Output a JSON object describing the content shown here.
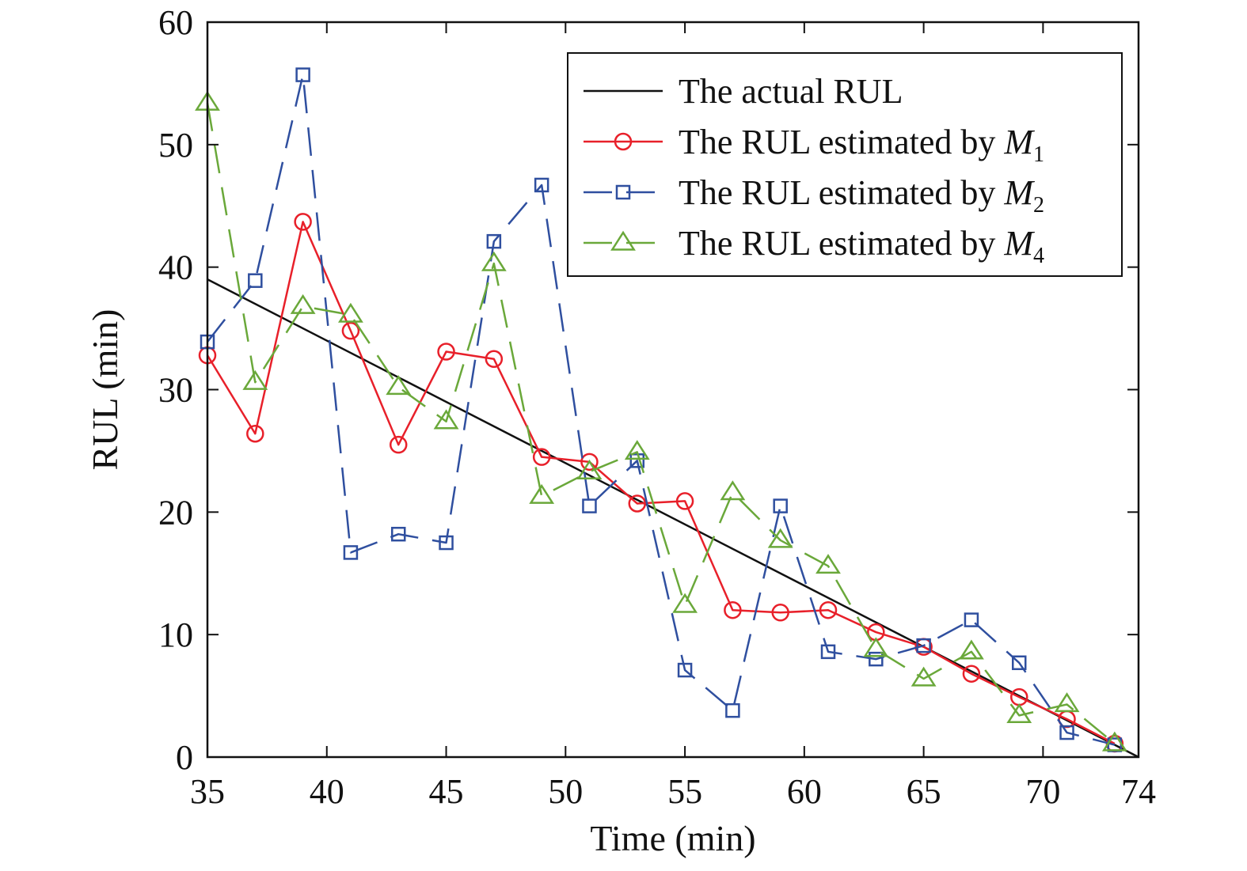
{
  "chart_data": {
    "type": "line",
    "xlabel": "Time (min)",
    "ylabel": "RUL (min)",
    "xlim": [
      35,
      74
    ],
    "ylim": [
      0,
      60
    ],
    "xticks": [
      35,
      40,
      45,
      50,
      55,
      60,
      65,
      70,
      74
    ],
    "yticks": [
      0,
      10,
      20,
      30,
      40,
      50,
      60
    ],
    "grid": false,
    "legend_position": "top-right",
    "series": [
      {
        "name": "The actual RUL",
        "legend_prefix": "The actual RUL",
        "legend_italic": "",
        "legend_subscript": "",
        "color": "#111111",
        "style": "solid",
        "marker": "none",
        "x": [
          35,
          74
        ],
        "y": [
          39,
          0
        ]
      },
      {
        "name": "The RUL estimated by M1",
        "legend_prefix": "The RUL estimated by ",
        "legend_italic": "M",
        "legend_subscript": "1",
        "color": "#e8202a",
        "style": "solid",
        "marker": "circle",
        "x": [
          35,
          37,
          39,
          41,
          43,
          45,
          47,
          49,
          51,
          53,
          55,
          57,
          59,
          61,
          63,
          65,
          67,
          69,
          71,
          73
        ],
        "y": [
          32.8,
          26.4,
          43.7,
          34.8,
          25.5,
          33.1,
          32.5,
          24.5,
          24.1,
          20.7,
          20.9,
          12.0,
          11.8,
          12.0,
          10.2,
          9.0,
          6.8,
          4.9,
          3.1,
          1.1
        ]
      },
      {
        "name": "The RUL estimated by M2",
        "legend_prefix": "The RUL estimated by ",
        "legend_italic": "M",
        "legend_subscript": "2",
        "color": "#2f4f9f",
        "style": "dashed",
        "marker": "square",
        "x": [
          35,
          37,
          39,
          41,
          43,
          45,
          47,
          49,
          51,
          53,
          55,
          57,
          59,
          61,
          63,
          65,
          67,
          69,
          71,
          73
        ],
        "y": [
          33.9,
          38.9,
          55.7,
          16.7,
          18.2,
          17.5,
          42.1,
          46.7,
          20.5,
          24.2,
          7.1,
          3.8,
          20.5,
          8.6,
          8.0,
          9.1,
          11.2,
          7.7,
          2.0,
          1.0
        ]
      },
      {
        "name": "The RUL estimated by M4",
        "legend_prefix": "The RUL estimated by ",
        "legend_italic": "M",
        "legend_subscript": "4",
        "color": "#6aa83a",
        "style": "dashed",
        "marker": "triangle",
        "x": [
          35,
          37,
          39,
          41,
          43,
          45,
          47,
          49,
          51,
          53,
          55,
          57,
          59,
          61,
          63,
          65,
          67,
          69,
          71,
          73
        ],
        "y": [
          53.4,
          30.6,
          36.8,
          36.1,
          30.2,
          27.4,
          40.3,
          21.3,
          23.3,
          24.9,
          12.4,
          21.6,
          17.7,
          15.6,
          8.8,
          6.4,
          8.6,
          3.4,
          4.3,
          1.1
        ]
      }
    ]
  }
}
